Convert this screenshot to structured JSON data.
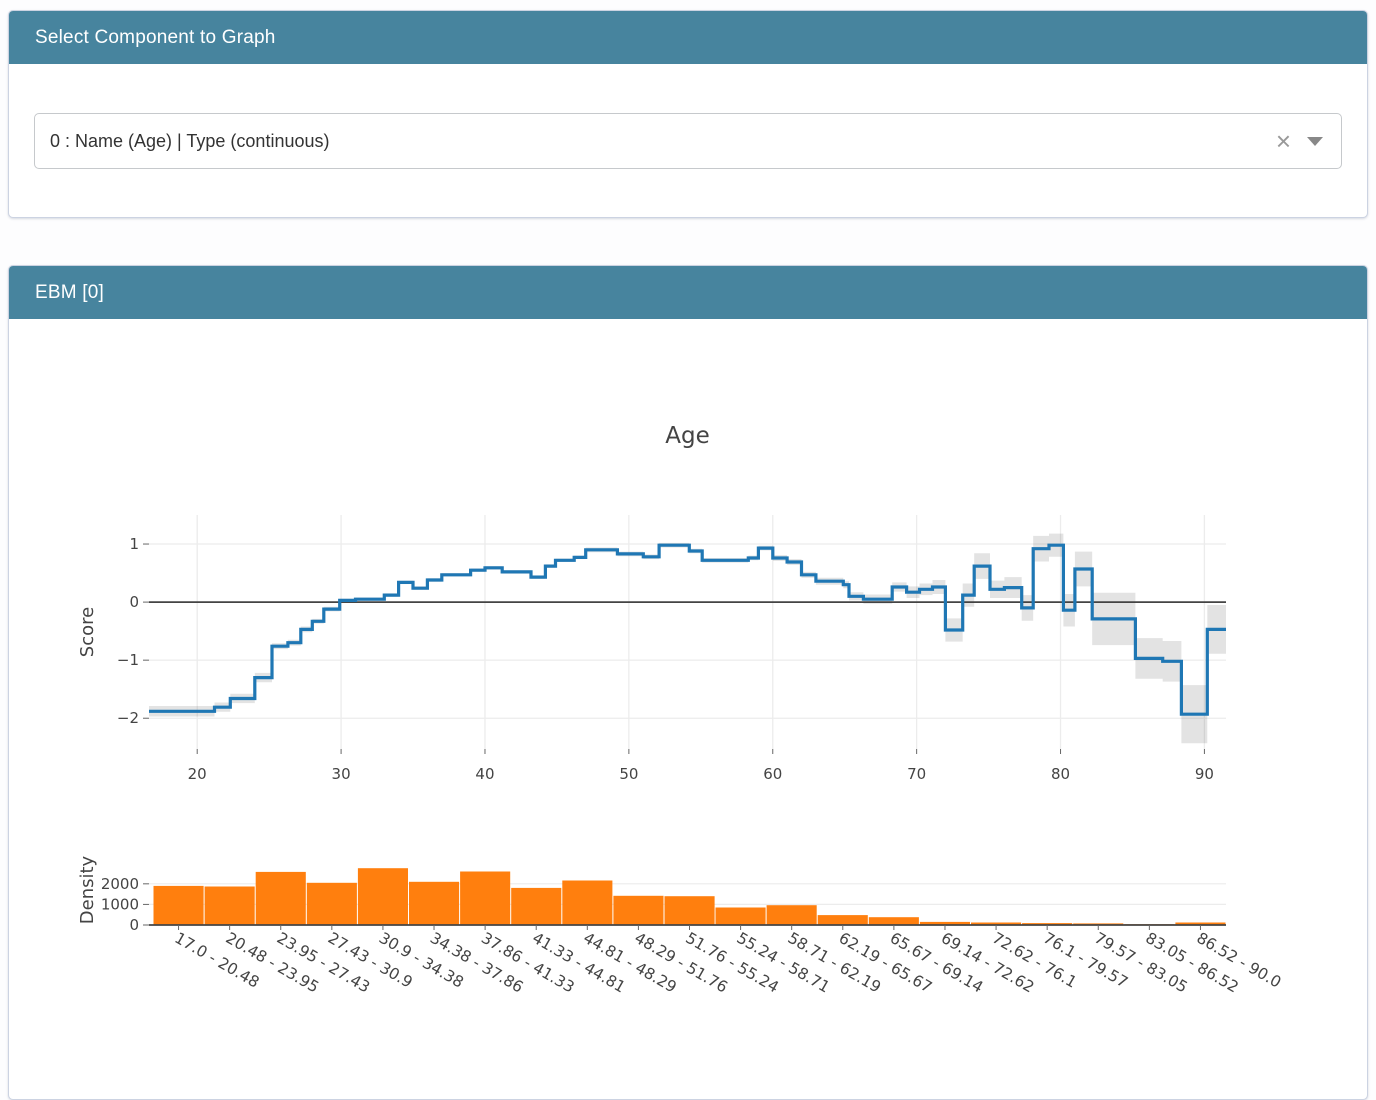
{
  "select_panel": {
    "header": "Select Component to Graph",
    "dropdown": {
      "value": "0 : Name (Age) | Type (continuous)",
      "clear_icon": "×"
    }
  },
  "ebm_panel": {
    "header": "EBM [0]"
  },
  "colors": {
    "header_bg": "#47849e",
    "line": "#1f77b4",
    "band": "rgba(68,68,68,0.15)",
    "bar": "#ff7f0e",
    "zero_line": "#444444",
    "grid": "#ececec",
    "tick_text": "#444444",
    "axis_line": "#444444"
  },
  "chart_data": [
    {
      "type": "line",
      "title": "Age",
      "xlabel": "",
      "ylabel": "Score",
      "line_shape": "step-hv",
      "grid": true,
      "zero_line": true,
      "xlim": [
        16.65,
        91.5
      ],
      "ylim": [
        -2.53,
        1.5
      ],
      "xticks": [
        20,
        30,
        40,
        50,
        60,
        70,
        80,
        90
      ],
      "xtick_labels": [
        "20",
        "30",
        "40",
        "50",
        "60",
        "70",
        "80",
        "90"
      ],
      "ytick_values": [
        1,
        0,
        -1,
        -2
      ],
      "ytick_labels": [
        "1",
        "0",
        "−1",
        "−2"
      ],
      "x": [
        16.65,
        21.2,
        22.3,
        24.0,
        25.2,
        26.3,
        27.2,
        28.0,
        28.8,
        29.9,
        31.0,
        33.0,
        34.0,
        35.0,
        36.0,
        37.0,
        39.0,
        40.0,
        41.2,
        43.2,
        44.2,
        44.9,
        46.2,
        47.0,
        49.2,
        51.0,
        52.1,
        54.2,
        55.1,
        58.3,
        59.0,
        60.0,
        61.0,
        62.0,
        63.0,
        64.9,
        65.3,
        66.3,
        68.3,
        69.3,
        70.2,
        71.1,
        72.0,
        73.2,
        74.0,
        75.1,
        76.1,
        77.3,
        78.1,
        79.2,
        80.2,
        81.0,
        82.2,
        85.2,
        87.1,
        88.4,
        90.2,
        91.5
      ],
      "y": [
        -1.88,
        -1.81,
        -1.66,
        -1.3,
        -0.76,
        -0.7,
        -0.47,
        -0.33,
        -0.12,
        0.03,
        0.05,
        0.12,
        0.34,
        0.24,
        0.38,
        0.47,
        0.55,
        0.59,
        0.52,
        0.43,
        0.62,
        0.72,
        0.77,
        0.9,
        0.83,
        0.78,
        0.98,
        0.88,
        0.72,
        0.76,
        0.93,
        0.76,
        0.69,
        0.47,
        0.36,
        0.3,
        0.1,
        0.05,
        0.26,
        0.17,
        0.22,
        0.26,
        -0.48,
        0.12,
        0.62,
        0.22,
        0.25,
        -0.1,
        0.92,
        0.98,
        -0.14,
        0.57,
        -0.29,
        -0.97,
        -1.02,
        -1.93,
        -0.47,
        -0.47
      ],
      "band_upper": [
        -1.79,
        -1.73,
        -1.58,
        -1.22,
        -0.71,
        -0.65,
        -0.42,
        -0.29,
        -0.08,
        0.06,
        0.08,
        0.15,
        0.37,
        0.27,
        0.41,
        0.5,
        0.58,
        0.62,
        0.55,
        0.46,
        0.65,
        0.75,
        0.8,
        0.94,
        0.87,
        0.82,
        1.02,
        0.92,
        0.76,
        0.8,
        0.97,
        0.81,
        0.74,
        0.52,
        0.42,
        0.36,
        0.17,
        0.13,
        0.34,
        0.27,
        0.32,
        0.38,
        -0.28,
        0.32,
        0.84,
        0.37,
        0.43,
        0.12,
        1.14,
        1.18,
        0.14,
        0.87,
        0.16,
        -0.62,
        -0.67,
        -1.43,
        -0.05,
        -0.05
      ],
      "band_lower": [
        -1.97,
        -1.89,
        -1.74,
        -1.38,
        -0.81,
        -0.75,
        -0.52,
        -0.37,
        -0.16,
        0.0,
        0.02,
        0.09,
        0.31,
        0.21,
        0.35,
        0.44,
        0.52,
        0.56,
        0.49,
        0.4,
        0.59,
        0.69,
        0.74,
        0.86,
        0.79,
        0.74,
        0.94,
        0.84,
        0.68,
        0.72,
        0.89,
        0.71,
        0.64,
        0.42,
        0.3,
        0.24,
        0.03,
        -0.03,
        0.18,
        0.07,
        0.12,
        0.14,
        -0.68,
        -0.08,
        0.4,
        0.07,
        0.07,
        -0.32,
        0.7,
        0.78,
        -0.42,
        0.27,
        -0.74,
        -1.32,
        -1.37,
        -2.43,
        -0.89,
        -0.89
      ]
    },
    {
      "type": "bar",
      "ylabel": "Density",
      "grid": true,
      "ylim": [
        0,
        3400
      ],
      "ytick_values": [
        0,
        1000,
        2000
      ],
      "ytick_labels": [
        "0",
        "1000",
        "2000"
      ],
      "label_angle": 30,
      "categories": [
        "17.0 - 20.48",
        "20.48 - 23.95",
        "23.95 - 27.43",
        "27.43 - 30.9",
        "30.9 - 34.38",
        "34.38 - 37.86",
        "37.86 - 41.33",
        "41.33 - 44.81",
        "44.81 - 48.29",
        "48.29 - 51.76",
        "51.76 - 55.24",
        "55.24 - 58.71",
        "58.71 - 62.19",
        "62.19 - 65.67",
        "65.67 - 69.14",
        "69.14 - 72.62",
        "72.62 - 76.1",
        "76.1 - 79.57",
        "79.57 - 83.05",
        "83.05 - 86.52",
        "86.52 - 90.0"
      ],
      "values": [
        1900,
        1870,
        2580,
        2050,
        2760,
        2100,
        2600,
        1800,
        2160,
        1420,
        1400,
        850,
        960,
        480,
        380,
        150,
        120,
        90,
        80,
        40,
        120
      ]
    }
  ]
}
